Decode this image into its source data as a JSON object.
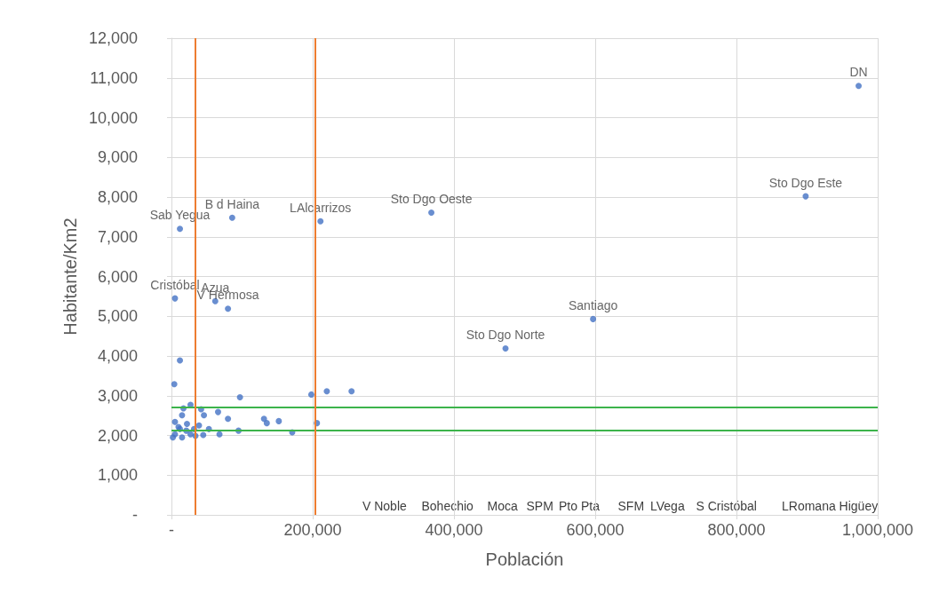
{
  "chart_data": {
    "type": "scatter",
    "xlabel": "Población",
    "ylabel": "Habitante/Km2",
    "x": [
      973000,
      898000,
      368000,
      211000,
      86000,
      12000,
      5000,
      62000,
      80000,
      597000,
      473000,
      12000,
      4000,
      97000,
      198000,
      220000,
      255000,
      27000,
      17000,
      15000,
      42000,
      46000,
      66000,
      80000,
      131000,
      135000,
      152000,
      206000,
      95000,
      171000,
      68000,
      53000,
      39000,
      5000,
      10000,
      21000,
      27000,
      5000,
      15000,
      34000,
      45000,
      12000,
      22000,
      2000,
      32000
    ],
    "values": [
      10800,
      8020,
      7610,
      7390,
      7480,
      7200,
      5450,
      5380,
      5190,
      4930,
      4190,
      3890,
      3290,
      2960,
      3030,
      3110,
      3110,
      2770,
      2680,
      2510,
      2660,
      2510,
      2590,
      2420,
      2420,
      2310,
      2360,
      2310,
      2120,
      2080,
      2030,
      2160,
      2250,
      2340,
      2210,
      2120,
      2030,
      2030,
      1950,
      1990,
      2010,
      2160,
      2290,
      1950,
      2160
    ],
    "value_labels": [
      "DN",
      "Sto Dgo Este",
      "Sto Dgo Oeste",
      "LAlcarrizos",
      "B d Haina",
      "Sab Yegua",
      "Cristóbal",
      "Azua",
      "V Hermosa",
      "Santiago",
      "Sto Dgo Norte",
      null,
      null,
      null,
      null,
      null,
      null,
      null,
      null,
      null,
      null,
      null,
      null,
      null,
      null,
      null,
      null,
      null,
      null,
      null,
      null,
      null,
      null,
      null,
      null,
      null,
      null,
      null,
      null,
      null,
      null,
      null,
      null,
      null,
      null
    ],
    "color": "#4472c4",
    "marker": "circle",
    "annotations": [
      "V Noble",
      "Bohechio",
      "Moca",
      "SPM",
      "Pto Pta",
      "SFM",
      "LVega",
      "S Cristóbal",
      "LRomana Higüey"
    ],
    "ref_lines": [
      {
        "axis": "y",
        "value": 2700,
        "color": "#3cb44b"
      },
      {
        "axis": "y",
        "value": 2120,
        "color": "#3cb44b"
      },
      {
        "axis": "x",
        "value": 34000,
        "color": "#ed7d31"
      },
      {
        "axis": "x",
        "value": 203000,
        "color": "#ed7d31"
      }
    ],
    "xlim": [
      0,
      1000000
    ],
    "xticks": [
      {
        "value": 0,
        "label": "-"
      },
      {
        "value": 200000,
        "label": "200,000"
      },
      {
        "value": 400000,
        "label": "400,000"
      },
      {
        "value": 600000,
        "label": "600,000"
      },
      {
        "value": 800000,
        "label": "800,000"
      },
      {
        "value": 1000000,
        "label": "1,000,000"
      }
    ],
    "ylim": [
      0,
      12000
    ],
    "yticks": [
      {
        "value": 0,
        "label": "-"
      },
      {
        "value": 1000,
        "label": "1,000"
      },
      {
        "value": 2000,
        "label": "2,000"
      },
      {
        "value": 3000,
        "label": "3,000"
      },
      {
        "value": 4000,
        "label": "4,000"
      },
      {
        "value": 5000,
        "label": "5,000"
      },
      {
        "value": 6000,
        "label": "6,000"
      },
      {
        "value": 7000,
        "label": "7,000"
      },
      {
        "value": 8000,
        "label": "8,000"
      },
      {
        "value": 9000,
        "label": "9,000"
      },
      {
        "value": 10000,
        "label": "10,000"
      },
      {
        "value": 11000,
        "label": "11,000"
      },
      {
        "value": 12000,
        "label": "12,000"
      }
    ],
    "grid": true
  }
}
